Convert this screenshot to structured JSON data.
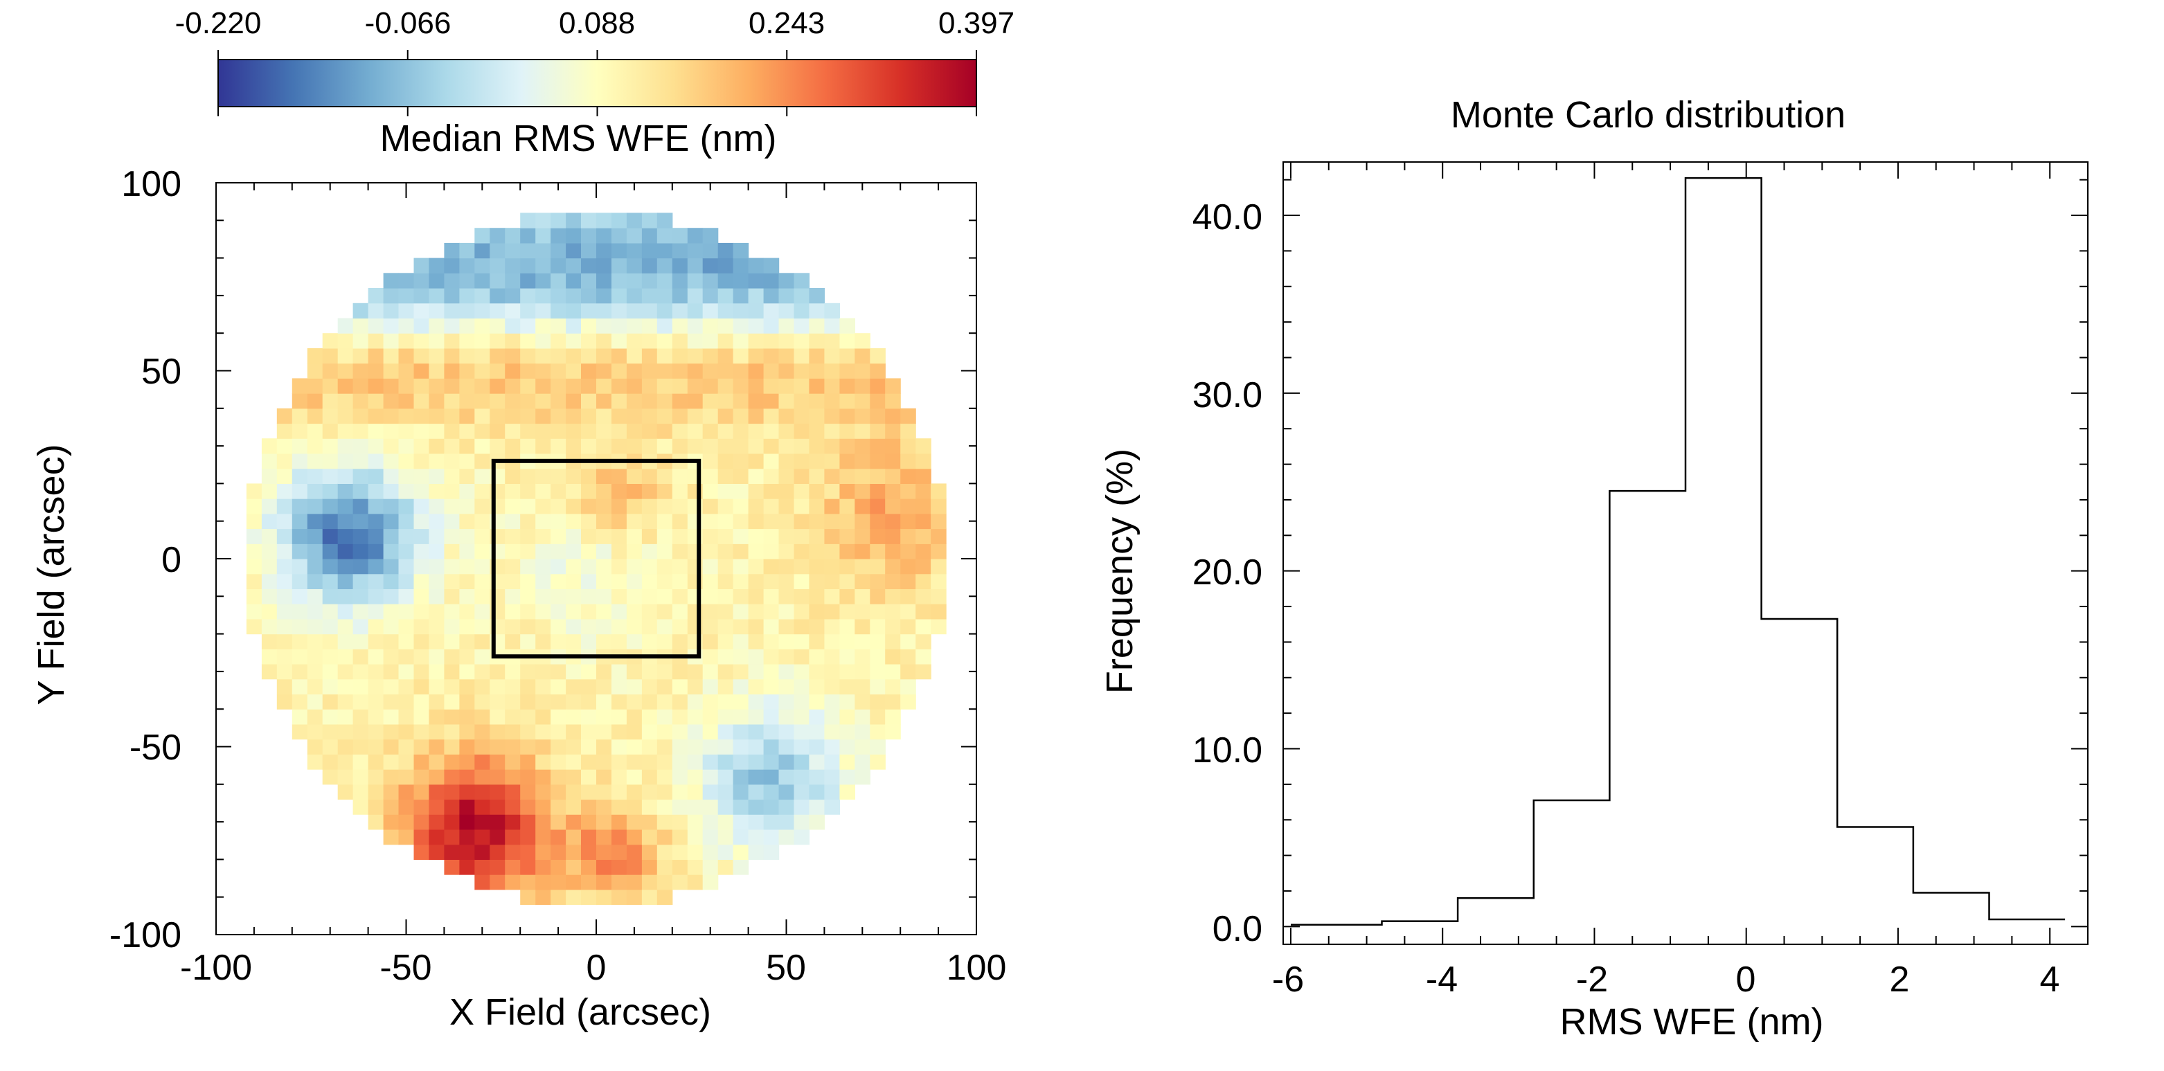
{
  "chart_data": [
    {
      "type": "heatmap",
      "title": "",
      "xlabel": "X Field (arcsec)",
      "ylabel": "Y Field (arcsec)",
      "xlim": [
        -100,
        100
      ],
      "ylim": [
        -100,
        100
      ],
      "xticks": [
        "-100",
        "-50",
        "0",
        "50",
        "100"
      ],
      "yticks": [
        "-100",
        "-50",
        "0",
        "50",
        "100"
      ],
      "field_radius": 92,
      "cell_size": 4,
      "colorbar": {
        "label": "Median RMS WFE (nm)",
        "ticks": [
          "-0.220",
          "-0.066",
          "0.088",
          "0.243",
          "0.397"
        ],
        "min": -0.22,
        "max": 0.397,
        "colors": [
          "#313695",
          "#4575b4",
          "#74add1",
          "#abd9e9",
          "#e0f3f8",
          "#ffffbf",
          "#fee090",
          "#fdae61",
          "#f46d43",
          "#d73027",
          "#a50026"
        ]
      },
      "regions": [
        {
          "name": "upper band",
          "center": [
            0,
            75
          ],
          "value": -0.03
        },
        {
          "name": "left blue blob",
          "center": [
            -65,
            5
          ],
          "value": -0.17
        },
        {
          "name": "lower-left red patch",
          "center": [
            -30,
            -72
          ],
          "value": 0.37
        },
        {
          "name": "lower-right blue patch",
          "center": [
            45,
            -60
          ],
          "value": -0.04
        },
        {
          "name": "right orange edge",
          "center": [
            75,
            10
          ],
          "value": 0.22
        },
        {
          "name": "central orange spot",
          "center": [
            5,
            15
          ],
          "value": 0.21
        }
      ],
      "annotation_box": {
        "x": [
          -27,
          27
        ],
        "y": [
          -26,
          26
        ]
      }
    },
    {
      "type": "histogram",
      "title": "Monte Carlo distribution",
      "xlabel": "RMS WFE (nm)",
      "ylabel": "Frequency (%)",
      "xlim": [
        -6.1,
        4.5
      ],
      "ylim": [
        -1,
        43
      ],
      "xticks": [
        "-6",
        "-4",
        "-2",
        "0",
        "2",
        "4"
      ],
      "yticks": [
        "0.0",
        "10.0",
        "20.0",
        "30.0",
        "40.0"
      ],
      "bin_edges": [
        -6,
        -4.8,
        -3.8,
        -2.8,
        -1.8,
        -0.8,
        0.2,
        1.2,
        2.2,
        3.2,
        4.2
      ],
      "values": [
        0.1,
        0.3,
        1.6,
        7.1,
        24.5,
        42.1,
        17.3,
        5.6,
        1.9,
        0.4
      ]
    }
  ]
}
